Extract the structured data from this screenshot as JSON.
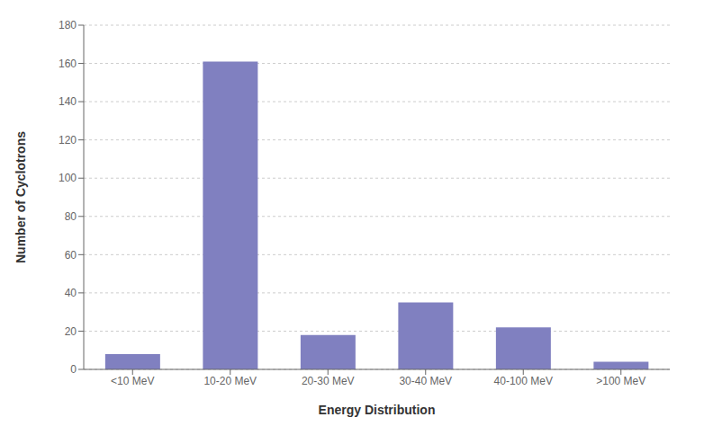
{
  "chart_data": {
    "type": "bar",
    "categories": [
      "<10 MeV",
      "10-20 MeV",
      "20-30 MeV",
      "30-40 MeV",
      "40-100 MeV",
      ">100 MeV"
    ],
    "values": [
      8,
      161,
      18,
      35,
      22,
      4
    ],
    "color": "#8080c0",
    "xlabel": "Energy Distribution",
    "ylabel": "Number of Cyclotrons",
    "ylim": [
      0,
      180
    ],
    "yticks": [
      0,
      20,
      40,
      60,
      80,
      100,
      120,
      140,
      160,
      180
    ],
    "grid": true
  }
}
